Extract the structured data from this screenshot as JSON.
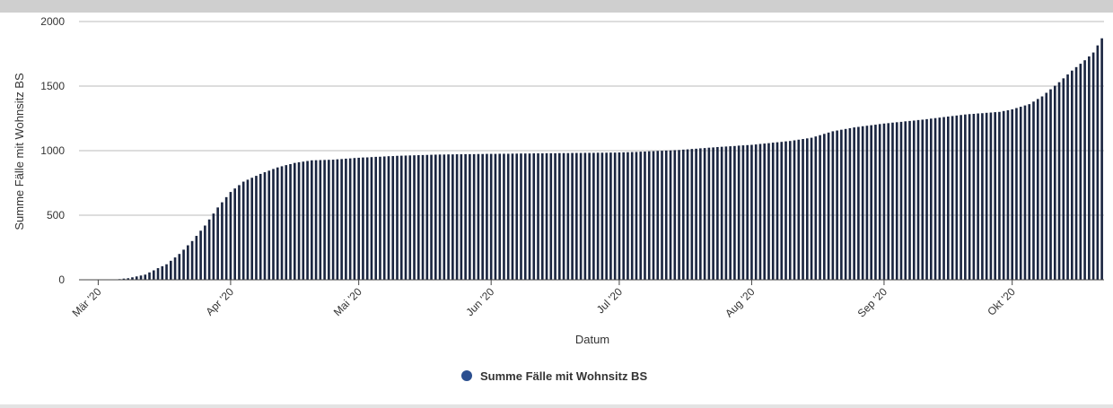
{
  "chart_data": {
    "type": "bar",
    "title": "",
    "xlabel": "Datum",
    "ylabel": "Summe Fälle mit Wohnsitz BS",
    "ylim": [
      0,
      2000
    ],
    "yticks": [
      0,
      500,
      1000,
      1500,
      2000
    ],
    "x_tick_labels": [
      "Mär '20",
      "Apr '20",
      "Mai '20",
      "Jun '20",
      "Jul '20",
      "Aug '20",
      "Sep '20",
      "Okt '20"
    ],
    "x_start": "2020-02-26",
    "x_end": "2020-10-22",
    "grid": true,
    "legend_position": "bottom-center",
    "colors": {
      "bar": "#1a2540",
      "legend_marker": "#2b4f8f",
      "grid": "#bbbbbb"
    },
    "series": [
      {
        "name": "Summe Fälle mit Wohnsitz BS",
        "anchors": [
          [
            "2020-02-26",
            1
          ],
          [
            "2020-03-01",
            1
          ],
          [
            "2020-03-05",
            2
          ],
          [
            "2020-03-08",
            12
          ],
          [
            "2020-03-12",
            40
          ],
          [
            "2020-03-15",
            90
          ],
          [
            "2020-03-17",
            120
          ],
          [
            "2020-03-20",
            200
          ],
          [
            "2020-03-23",
            300
          ],
          [
            "2020-03-26",
            420
          ],
          [
            "2020-03-29",
            560
          ],
          [
            "2020-04-01",
            680
          ],
          [
            "2020-04-04",
            760
          ],
          [
            "2020-04-08",
            820
          ],
          [
            "2020-04-12",
            870
          ],
          [
            "2020-04-16",
            905
          ],
          [
            "2020-04-20",
            925
          ],
          [
            "2020-04-25",
            930
          ],
          [
            "2020-05-01",
            945
          ],
          [
            "2020-05-10",
            960
          ],
          [
            "2020-05-20",
            970
          ],
          [
            "2020-06-01",
            975
          ],
          [
            "2020-06-15",
            980
          ],
          [
            "2020-06-30",
            985
          ],
          [
            "2020-07-05",
            990
          ],
          [
            "2020-07-15",
            1005
          ],
          [
            "2020-07-25",
            1030
          ],
          [
            "2020-08-01",
            1045
          ],
          [
            "2020-08-10",
            1075
          ],
          [
            "2020-08-15",
            1100
          ],
          [
            "2020-08-20",
            1150
          ],
          [
            "2020-08-25",
            1180
          ],
          [
            "2020-09-01",
            1210
          ],
          [
            "2020-09-10",
            1240
          ],
          [
            "2020-09-20",
            1280
          ],
          [
            "2020-09-28",
            1300
          ],
          [
            "2020-10-01",
            1320
          ],
          [
            "2020-10-05",
            1360
          ],
          [
            "2020-10-08",
            1420
          ],
          [
            "2020-10-12",
            1530
          ],
          [
            "2020-10-15",
            1620
          ],
          [
            "2020-10-18",
            1700
          ],
          [
            "2020-10-20",
            1760
          ],
          [
            "2020-10-22",
            1870
          ]
        ]
      }
    ]
  }
}
